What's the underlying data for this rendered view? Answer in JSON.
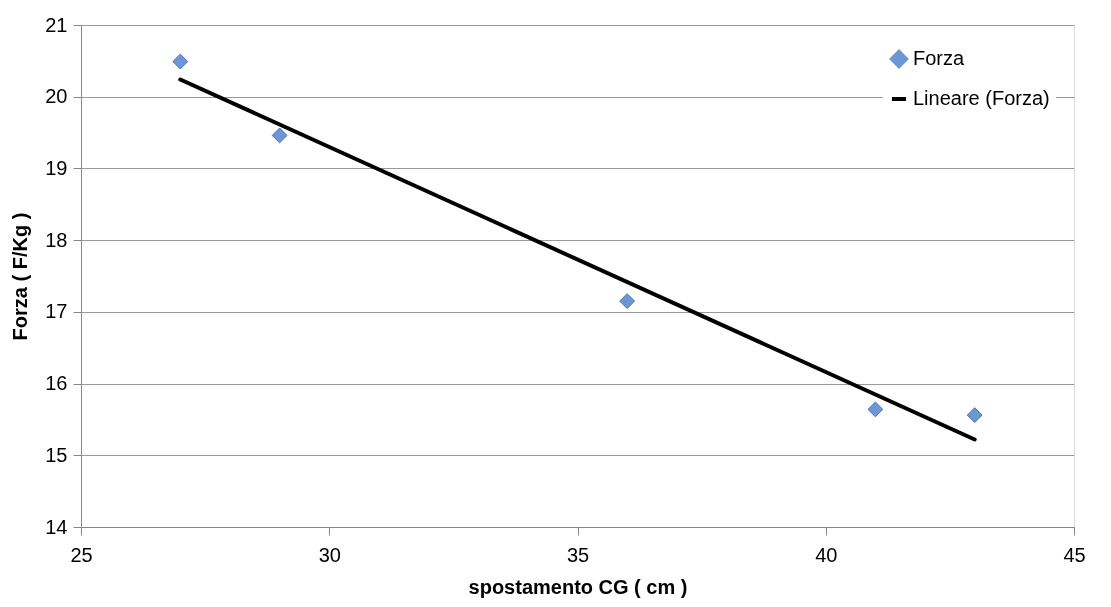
{
  "chart_data": {
    "type": "scatter",
    "xlabel": "spostamento CG ( cm )",
    "ylabel": "Forza ( F/Kg )",
    "xlim": [
      25,
      45
    ],
    "xticks": [
      25,
      30,
      35,
      40,
      45
    ],
    "ylim": [
      14,
      21
    ],
    "yticks": [
      14,
      15,
      16,
      17,
      18,
      19,
      20,
      21
    ],
    "grid": "y",
    "legend": "top right",
    "marker": "diamond",
    "x": [
      27,
      29,
      36,
      41,
      43
    ],
    "series": [
      {
        "name": "Forza",
        "color": "#6d97d4",
        "values": [
          20.49,
          19.46,
          17.15,
          15.64,
          15.56
        ]
      },
      {
        "name": "Lineare (Forza)",
        "type": "line",
        "color": "#000000",
        "x": [
          27,
          43
        ],
        "values": [
          20.24,
          15.22
        ],
        "marker": "none",
        "line_style": "solid"
      }
    ]
  }
}
